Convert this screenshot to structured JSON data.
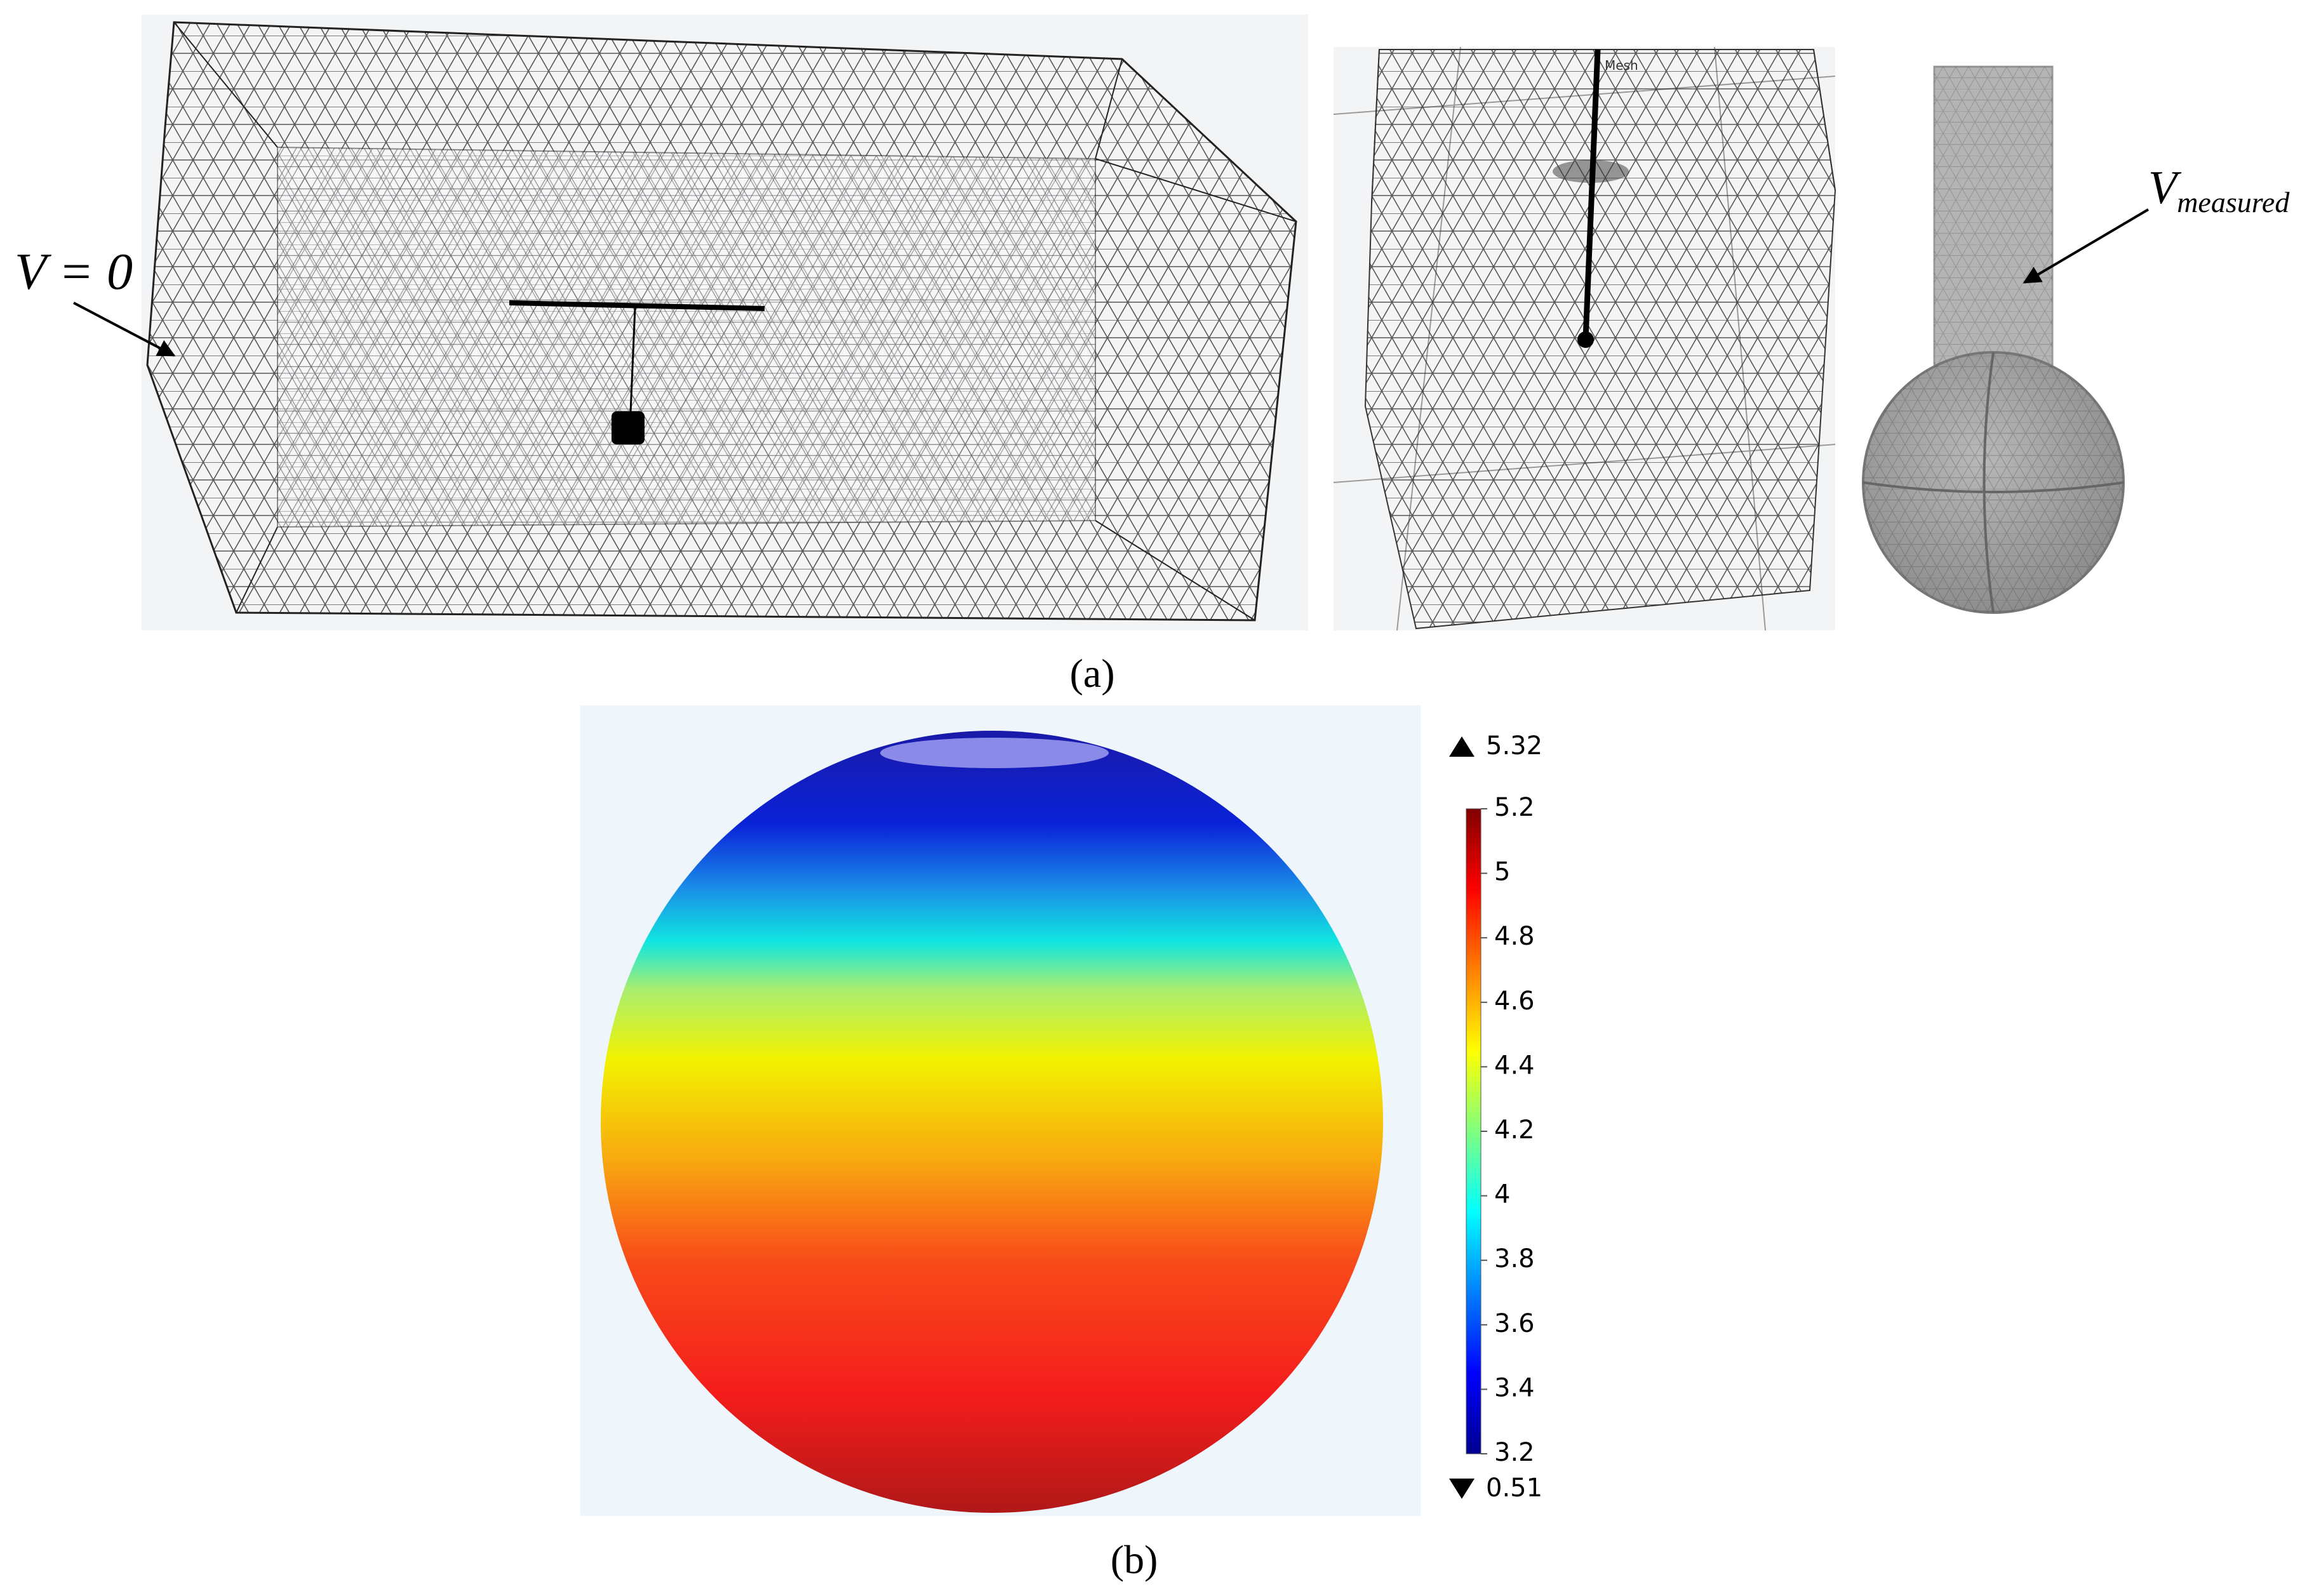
{
  "panel_a": {
    "caption": "(a)",
    "boundary_label": "V = 0",
    "measured_label": {
      "symbol": "V",
      "subscript": "measured"
    },
    "mesh_tag": "Mesh"
  },
  "panel_b": {
    "caption": "(b)",
    "colorbar": {
      "type": "colorbar",
      "max": 5.32,
      "min": 0.51,
      "lim": [
        3.2,
        5.2
      ],
      "ticks": [
        3.2,
        3.4,
        3.6,
        3.8,
        4,
        4.2,
        4.4,
        4.6,
        4.8,
        5,
        5.2
      ]
    }
  }
}
